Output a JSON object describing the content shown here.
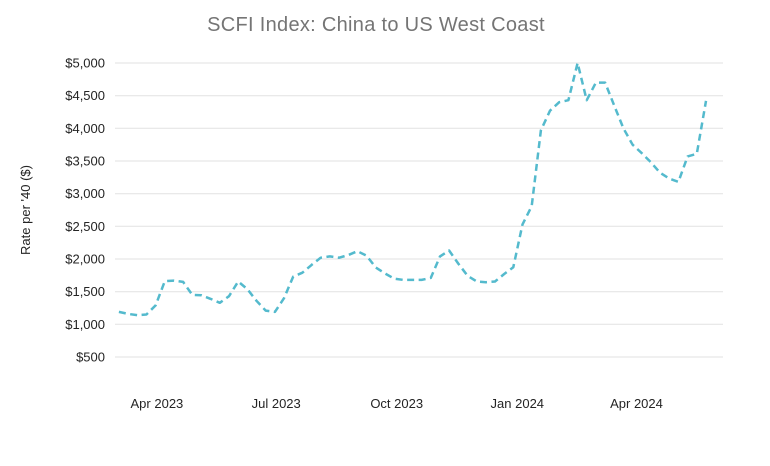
{
  "chart_data": {
    "type": "line",
    "title": "SCFI Index: China to US West Coast",
    "xlabel": "",
    "ylabel": "Rate per '40 ($)",
    "legend": false,
    "grid": true,
    "line_style": "dashed",
    "line_color": "#54BACD",
    "grid_color": "#E2E2E2",
    "title_color": "#757575",
    "tick_label_color": "#242424",
    "ylim": [
      500,
      5000
    ],
    "y_tick_step": 500,
    "x_range": [
      "2023-02-28",
      "2024-06-06"
    ],
    "y_ticks": [
      {
        "label": "$5,000",
        "value": 5000
      },
      {
        "label": "$4,500",
        "value": 4500
      },
      {
        "label": "$4,000",
        "value": 4000
      },
      {
        "label": "$3,500",
        "value": 3500
      },
      {
        "label": "$3,000",
        "value": 3000
      },
      {
        "label": "$2,500",
        "value": 2500
      },
      {
        "label": "$2,000",
        "value": 2000
      },
      {
        "label": "$1,500",
        "value": 1500
      },
      {
        "label": "$1,000",
        "value": 1000
      },
      {
        "label": "$500",
        "value": 500
      }
    ],
    "x_ticks": [
      {
        "label": "Apr 2023",
        "date": "2023-04-01"
      },
      {
        "label": "Jul 2023",
        "date": "2023-07-01"
      },
      {
        "label": "Oct 2023",
        "date": "2023-10-01"
      },
      {
        "label": "Jan 2024",
        "date": "2024-01-01"
      },
      {
        "label": "Apr 2024",
        "date": "2024-04-01"
      }
    ],
    "series": [
      {
        "frequency": "weekly",
        "points": [
          [
            "2023-03-03",
            1190
          ],
          [
            "2023-03-10",
            1160
          ],
          [
            "2023-03-17",
            1140
          ],
          [
            "2023-03-24",
            1150
          ],
          [
            "2023-03-31",
            1290
          ],
          [
            "2023-04-07",
            1660
          ],
          [
            "2023-04-14",
            1670
          ],
          [
            "2023-04-21",
            1650
          ],
          [
            "2023-04-28",
            1450
          ],
          [
            "2023-05-05",
            1445
          ],
          [
            "2023-05-12",
            1390
          ],
          [
            "2023-05-19",
            1330
          ],
          [
            "2023-05-26",
            1430
          ],
          [
            "2023-06-02",
            1655
          ],
          [
            "2023-06-09",
            1540
          ],
          [
            "2023-06-16",
            1360
          ],
          [
            "2023-06-23",
            1210
          ],
          [
            "2023-06-30",
            1190
          ],
          [
            "2023-07-07",
            1400
          ],
          [
            "2023-07-14",
            1730
          ],
          [
            "2023-07-21",
            1790
          ],
          [
            "2023-07-28",
            1910
          ],
          [
            "2023-08-04",
            2020
          ],
          [
            "2023-08-11",
            2040
          ],
          [
            "2023-08-18",
            2020
          ],
          [
            "2023-08-25",
            2060
          ],
          [
            "2023-09-01",
            2120
          ],
          [
            "2023-09-08",
            2050
          ],
          [
            "2023-09-15",
            1870
          ],
          [
            "2023-09-22",
            1780
          ],
          [
            "2023-09-29",
            1700
          ],
          [
            "2023-10-06",
            1680
          ],
          [
            "2023-10-13",
            1680
          ],
          [
            "2023-10-20",
            1680
          ],
          [
            "2023-10-27",
            1710
          ],
          [
            "2023-11-03",
            2040
          ],
          [
            "2023-11-10",
            2130
          ],
          [
            "2023-11-17",
            1930
          ],
          [
            "2023-11-24",
            1745
          ],
          [
            "2023-12-01",
            1655
          ],
          [
            "2023-12-08",
            1645
          ],
          [
            "2023-12-15",
            1655
          ],
          [
            "2023-12-22",
            1770
          ],
          [
            "2023-12-29",
            1875
          ],
          [
            "2024-01-05",
            2530
          ],
          [
            "2024-01-12",
            2810
          ],
          [
            "2024-01-19",
            3970
          ],
          [
            "2024-01-26",
            4270
          ],
          [
            "2024-02-02",
            4400
          ],
          [
            "2024-02-09",
            4430
          ],
          [
            "2024-02-16",
            5000
          ],
          [
            "2024-02-23",
            4430
          ],
          [
            "2024-03-01",
            4700
          ],
          [
            "2024-03-08",
            4700
          ],
          [
            "2024-03-15",
            4350
          ],
          [
            "2024-03-22",
            4000
          ],
          [
            "2024-03-29",
            3750
          ],
          [
            "2024-04-05",
            3620
          ],
          [
            "2024-04-12",
            3480
          ],
          [
            "2024-04-19",
            3320
          ],
          [
            "2024-04-26",
            3230
          ],
          [
            "2024-05-03",
            3180
          ],
          [
            "2024-05-10",
            3570
          ],
          [
            "2024-05-17",
            3610
          ],
          [
            "2024-05-24",
            4420
          ]
        ]
      }
    ]
  }
}
